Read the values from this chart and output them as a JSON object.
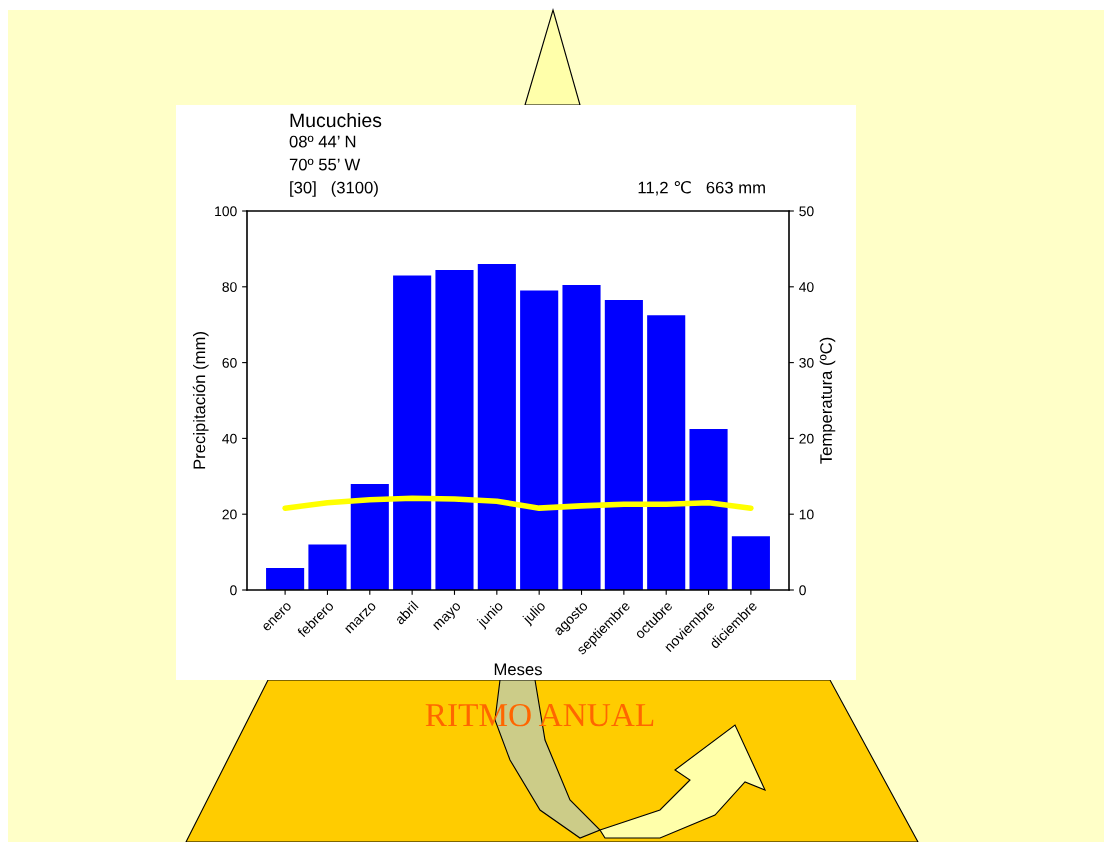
{
  "chart_data": {
    "type": "bar",
    "title": "Mucuchies",
    "annotations": [
      "08º 44’ N",
      "70º 55’ W",
      "[30]   (3100)",
      "11,2 ℃   663 mm",
      "RITMO ANUAL"
    ],
    "xlabel": "Meses",
    "ylabel": "Precipitación (mm)",
    "y2label": "Temperatura (ºC)",
    "categories": [
      "enero",
      "febrero",
      "marzo",
      "abril",
      "mayo",
      "junio",
      "julio",
      "agosto",
      "septiembre",
      "octubre",
      "noviembre",
      "diciembre"
    ],
    "series": [
      {
        "color": "#0000ff",
        "values": [
          5.8,
          12,
          28,
          83,
          84.4,
          86,
          79,
          80.5,
          76.5,
          72.5,
          42.5,
          14.2
        ]
      },
      {
        "type": "line",
        "axis": "y2",
        "color": "#ffff00",
        "values": [
          10.8,
          11.5,
          11.9,
          12.1,
          12.0,
          11.7,
          10.8,
          11.1,
          11.3,
          11.3,
          11.5,
          10.8
        ]
      }
    ],
    "ylim": [
      0,
      100
    ],
    "yticks": [
      0,
      20,
      40,
      60,
      80,
      100
    ],
    "y2lim": [
      0,
      50
    ],
    "y2ticks": [
      0,
      10,
      20,
      30,
      40,
      50
    ],
    "grid": false,
    "legend": false
  }
}
